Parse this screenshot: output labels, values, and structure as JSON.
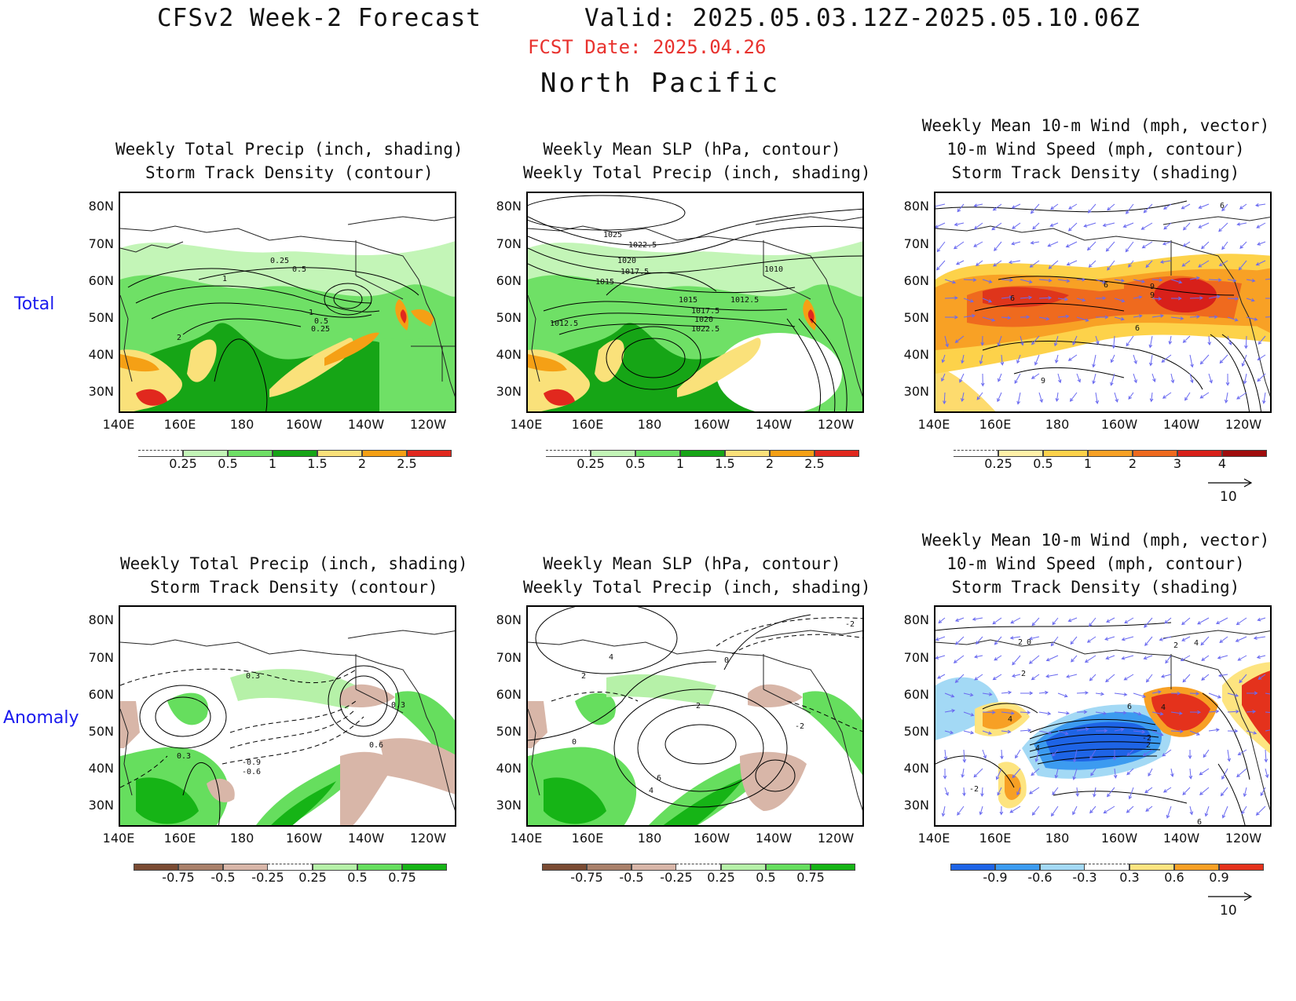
{
  "header": {
    "title": "CFSv2 Week-2 Forecast",
    "valid": "Valid: 2025.05.03.12Z-2025.05.10.06Z",
    "fcst_date": "FCST Date: 2025.04.26",
    "region": "North Pacific"
  },
  "rows": {
    "total": "Total",
    "anomaly": "Anomaly"
  },
  "panels": {
    "p1": {
      "title": "Weekly Total Precip (inch, shading)\n Storm Track Density (contour)"
    },
    "p2": {
      "title": "Weekly Mean SLP (hPa, contour)\nWeekly Total Precip (inch, shading)"
    },
    "p3": {
      "title": "Weekly Mean 10-m Wind (mph, vector)\n10-m Wind Speed (mph, contour)\nStorm Track Density (shading)"
    },
    "p4": {
      "title": "Weekly Total Precip (inch, shading)\n Storm Track Density (contour)"
    },
    "p5": {
      "title": "Weekly Mean SLP (hPa, contour)\nWeekly Total Precip (inch, shading)"
    },
    "p6": {
      "title": "Weekly Mean 10-m Wind (mph, vector)\n10-m Wind Speed (mph, contour)\nStorm Track Density (shading)"
    }
  },
  "axes": {
    "lat_labels": [
      "80N",
      "70N",
      "60N",
      "50N",
      "40N",
      "30N"
    ],
    "lon_labels": [
      "140E",
      "160E",
      "180",
      "160W",
      "140W",
      "120W"
    ]
  },
  "colorbars": {
    "precip_total": {
      "labels": [
        "0.25",
        "0.5",
        "1",
        "1.5",
        "2",
        "2.5"
      ],
      "colors": [
        "#ffffff",
        "#c3f5b7",
        "#6fe066",
        "#16a516",
        "#fae17a",
        "#f5a015",
        "#e1281e"
      ]
    },
    "std_total": {
      "labels": [
        "0.25",
        "0.5",
        "1",
        "2",
        "3",
        "4"
      ],
      "colors": [
        "#ffffff",
        "#fff1a8",
        "#fdd24a",
        "#f8a125",
        "#ef6a1e",
        "#d8201a",
        "#a00d0d"
      ]
    },
    "precip_anom": {
      "labels": [
        "-0.75",
        "-0.5",
        "-0.25",
        "0.25",
        "0.5",
        "0.75"
      ],
      "colors": [
        "#7a4b33",
        "#a9806a",
        "#d8b6a8",
        "#ffffff",
        "#b6f1a8",
        "#66de5e",
        "#16b416"
      ]
    },
    "std_anom": {
      "labels": [
        "-0.9",
        "-0.6",
        "-0.3",
        "0.3",
        "0.6",
        "0.9"
      ],
      "colors": [
        "#1e64e6",
        "#3c9bf0",
        "#a3d9f5",
        "#ffffff",
        "#fde480",
        "#f7a025",
        "#e4321c"
      ]
    }
  },
  "vector_reference": "10",
  "contour_labels": {
    "p1": [
      "0.25",
      "0.5",
      "1",
      "2",
      "1",
      "0.5",
      "0.25"
    ],
    "p2": [
      "1025",
      "1022.5",
      "1020",
      "1017.5",
      "1015",
      "1012.5",
      "1015",
      "1012.5",
      "1010",
      "1017.5",
      "1020",
      "1022.5"
    ],
    "p3": [
      "6",
      "6",
      "6",
      "9",
      "9",
      "9",
      "6"
    ],
    "p4": [
      "0.3",
      "0.3",
      "0.3",
      "0.6",
      "-0.9",
      "-0.6"
    ],
    "p5": [
      "4",
      "2",
      "0",
      "0",
      "2",
      "-2",
      "-2",
      "6",
      "4"
    ],
    "p6": [
      "2",
      "0",
      "2",
      "2",
      "4",
      "4",
      "6",
      "4",
      "-2",
      "2",
      "4",
      "6",
      "-2"
    ]
  },
  "colors": {
    "accent_red": "#e8322e",
    "row_label_blue": "#1a1aee",
    "vector_blue": "#6a6af0"
  }
}
